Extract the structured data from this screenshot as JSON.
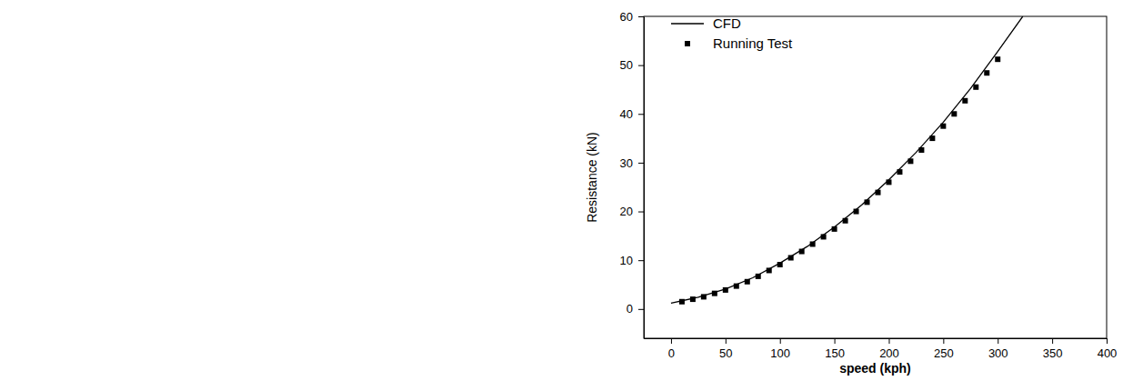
{
  "chart_data": {
    "type": "line",
    "xlabel": "speed (kph)",
    "ylabel": "Resistance (kN)",
    "xlim": [
      -25,
      400
    ],
    "xticks": [
      0,
      50,
      100,
      150,
      200,
      250,
      300,
      350,
      400
    ],
    "ylim": [
      -6,
      60
    ],
    "yticks": [
      0,
      10,
      20,
      30,
      40,
      50,
      60
    ],
    "legend": "upper left",
    "grid": false,
    "series": [
      {
        "name": "CFD",
        "type": "line",
        "color": "#000000",
        "line_style": "solid",
        "x": [
          0,
          25,
          50,
          75,
          100,
          125,
          150,
          175,
          200,
          225,
          250,
          275,
          300,
          323
        ],
        "values": [
          1.2,
          2.4,
          4.1,
          6.4,
          9.4,
          12.8,
          16.8,
          21.3,
          26.5,
          32.1,
          38.3,
          45.2,
          52.8,
          60
        ]
      },
      {
        "name": "Running Test",
        "type": "scatter",
        "color": "#000000",
        "marker": "square",
        "x": [
          10,
          20,
          30,
          40,
          50,
          60,
          70,
          80,
          90,
          100,
          110,
          120,
          130,
          140,
          150,
          160,
          170,
          180,
          190,
          200,
          210,
          220,
          230,
          240,
          250,
          260,
          270,
          280,
          290,
          300
        ],
        "values": [
          1.5,
          2.0,
          2.5,
          3.2,
          3.9,
          4.7,
          5.6,
          6.7,
          7.9,
          9.1,
          10.5,
          11.8,
          13.3,
          14.8,
          16.4,
          18.1,
          20.0,
          21.9,
          23.9,
          26.0,
          28.1,
          30.3,
          32.6,
          35.0,
          37.5,
          40.0,
          42.7,
          45.5,
          48.4,
          51.2
        ]
      }
    ]
  }
}
